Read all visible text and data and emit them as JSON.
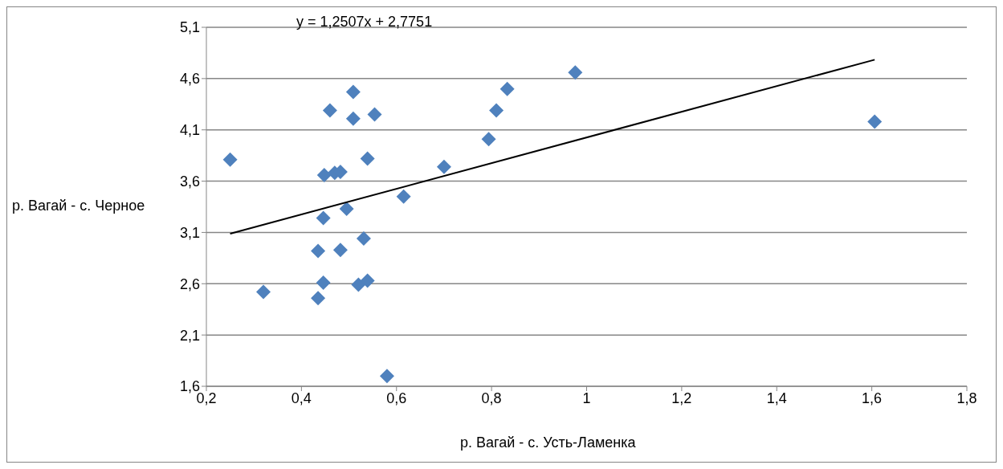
{
  "chart_data": {
    "type": "scatter",
    "xlabel": "р. Вагай - с. Усть-Ламенка",
    "ylabel": "р. Вагай - с. Черное",
    "annotations": [
      "y = 1,2507x + 2,7751"
    ],
    "xlim": [
      0.2,
      1.8
    ],
    "xticks": [
      {
        "value": 0.2,
        "label": "0,2"
      },
      {
        "value": 0.4,
        "label": "0,4"
      },
      {
        "value": 0.6,
        "label": "0,6"
      },
      {
        "value": 0.8,
        "label": "0,8"
      },
      {
        "value": 1,
        "label": "1"
      },
      {
        "value": 1.2,
        "label": "1,2"
      },
      {
        "value": 1.4,
        "label": "1,4"
      },
      {
        "value": 1.6,
        "label": "1,6"
      },
      {
        "value": 1.8,
        "label": "1,8"
      }
    ],
    "ylim": [
      1.6,
      5.1
    ],
    "yticks": [
      {
        "value": 1.6,
        "label": "1,6"
      },
      {
        "value": 2.1,
        "label": "2,1"
      },
      {
        "value": 2.6,
        "label": "2,6"
      },
      {
        "value": 3.1,
        "label": "3,1"
      },
      {
        "value": 3.6,
        "label": "3,6"
      },
      {
        "value": 4.1,
        "label": "4,1"
      },
      {
        "value": 4.6,
        "label": "4,6"
      },
      {
        "value": 5.1,
        "label": "5,1"
      }
    ],
    "grid": "y",
    "legend": false,
    "series": [
      {
        "marker": "diamond",
        "color": "#4f81bd",
        "x": [
          0.25,
          0.32,
          0.435,
          0.435,
          0.446,
          0.446,
          0.448,
          0.46,
          0.47,
          0.482,
          0.482,
          0.495,
          0.509,
          0.509,
          0.52,
          0.531,
          0.539,
          0.539,
          0.554,
          0.58,
          0.615,
          0.7,
          0.794,
          0.81,
          0.833,
          0.976,
          1.606
        ],
        "values": [
          3.81,
          2.52,
          2.46,
          2.92,
          2.61,
          3.24,
          3.66,
          4.29,
          3.68,
          3.69,
          2.93,
          3.33,
          4.21,
          4.47,
          2.59,
          3.04,
          2.63,
          3.82,
          4.25,
          1.7,
          3.45,
          3.74,
          4.01,
          4.29,
          4.5,
          4.66,
          4.18
        ]
      },
      {
        "type": "line",
        "color": "#000000",
        "x": [
          0.25,
          1.606
        ],
        "values": [
          3.088,
          4.784
        ]
      }
    ]
  }
}
